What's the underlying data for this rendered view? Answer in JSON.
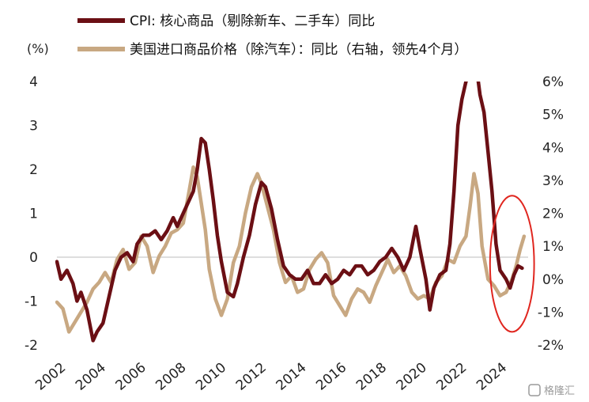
{
  "chart_data": {
    "type": "line",
    "unit_label": "(%)",
    "legend_placement": "top-left",
    "grid": false,
    "x_ticks": [
      "2002",
      "2004",
      "2006",
      "2008",
      "2010",
      "2012",
      "2014",
      "2016",
      "2018",
      "2020",
      "2022",
      "2024"
    ],
    "y_left": {
      "range": [
        -2,
        4
      ],
      "ticks": [
        "-2",
        "-1",
        "0",
        "1",
        "2",
        "3",
        "4"
      ]
    },
    "y_right": {
      "range": [
        -2,
        6
      ],
      "ticks": [
        "-2%",
        "-1%",
        "0%",
        "1%",
        "2%",
        "3%",
        "4%",
        "5%",
        "6%"
      ]
    },
    "series": [
      {
        "name": "CPI: 核心商品（剔除新车、二手车）同比",
        "axis": "left",
        "color": "#6b0f14",
        "points": [
          [
            2002.0,
            -0.1
          ],
          [
            2002.2,
            -0.5
          ],
          [
            2002.5,
            -0.3
          ],
          [
            2002.8,
            -0.6
          ],
          [
            2003.0,
            -1.0
          ],
          [
            2003.2,
            -0.8
          ],
          [
            2003.5,
            -1.2
          ],
          [
            2003.8,
            -1.9
          ],
          [
            2004.0,
            -1.7
          ],
          [
            2004.3,
            -1.5
          ],
          [
            2004.6,
            -0.9
          ],
          [
            2004.9,
            -0.3
          ],
          [
            2005.2,
            0.0
          ],
          [
            2005.5,
            0.1
          ],
          [
            2005.8,
            -0.1
          ],
          [
            2006.0,
            0.3
          ],
          [
            2006.3,
            0.5
          ],
          [
            2006.6,
            0.5
          ],
          [
            2006.9,
            0.6
          ],
          [
            2007.2,
            0.4
          ],
          [
            2007.5,
            0.6
          ],
          [
            2007.8,
            0.9
          ],
          [
            2008.0,
            0.7
          ],
          [
            2008.4,
            1.1
          ],
          [
            2008.8,
            1.5
          ],
          [
            2009.0,
            2.0
          ],
          [
            2009.2,
            2.7
          ],
          [
            2009.4,
            2.6
          ],
          [
            2009.6,
            2.0
          ],
          [
            2009.8,
            1.3
          ],
          [
            2010.0,
            0.5
          ],
          [
            2010.2,
            -0.1
          ],
          [
            2010.5,
            -0.8
          ],
          [
            2010.8,
            -0.9
          ],
          [
            2011.0,
            -0.6
          ],
          [
            2011.3,
            0.0
          ],
          [
            2011.6,
            0.5
          ],
          [
            2011.9,
            1.2
          ],
          [
            2012.2,
            1.7
          ],
          [
            2012.4,
            1.6
          ],
          [
            2012.7,
            1.1
          ],
          [
            2013.0,
            0.4
          ],
          [
            2013.3,
            -0.2
          ],
          [
            2013.6,
            -0.4
          ],
          [
            2013.9,
            -0.5
          ],
          [
            2014.2,
            -0.5
          ],
          [
            2014.5,
            -0.3
          ],
          [
            2014.8,
            -0.6
          ],
          [
            2015.1,
            -0.6
          ],
          [
            2015.4,
            -0.4
          ],
          [
            2015.7,
            -0.6
          ],
          [
            2016.0,
            -0.5
          ],
          [
            2016.3,
            -0.3
          ],
          [
            2016.6,
            -0.4
          ],
          [
            2016.9,
            -0.2
          ],
          [
            2017.2,
            -0.2
          ],
          [
            2017.5,
            -0.4
          ],
          [
            2017.8,
            -0.3
          ],
          [
            2018.1,
            -0.1
          ],
          [
            2018.4,
            0.0
          ],
          [
            2018.7,
            0.2
          ],
          [
            2019.0,
            0.0
          ],
          [
            2019.3,
            -0.3
          ],
          [
            2019.6,
            0.0
          ],
          [
            2019.9,
            0.7
          ],
          [
            2020.1,
            0.2
          ],
          [
            2020.4,
            -0.5
          ],
          [
            2020.6,
            -1.2
          ],
          [
            2020.8,
            -0.7
          ],
          [
            2021.1,
            -0.4
          ],
          [
            2021.4,
            -0.3
          ],
          [
            2021.6,
            0.3
          ],
          [
            2021.8,
            1.5
          ],
          [
            2022.0,
            3.0
          ],
          [
            2022.2,
            3.6
          ],
          [
            2022.4,
            4.0
          ],
          [
            2022.6,
            4.2
          ],
          [
            2022.9,
            4.4
          ],
          [
            2023.1,
            3.7
          ],
          [
            2023.3,
            3.3
          ],
          [
            2023.5,
            2.4
          ],
          [
            2023.7,
            1.5
          ],
          [
            2023.9,
            0.3
          ],
          [
            2024.1,
            -0.3
          ],
          [
            2024.4,
            -0.5
          ],
          [
            2024.6,
            -0.7
          ],
          [
            2024.8,
            -0.4
          ],
          [
            2025.0,
            -0.2
          ],
          [
            2025.2,
            -0.25
          ]
        ]
      },
      {
        "name": "美国进口商品价格（除汽车）：同比（右轴，领先4个月）",
        "axis": "right",
        "color": "#c8a882",
        "points": [
          [
            2002.0,
            -0.7
          ],
          [
            2002.3,
            -0.9
          ],
          [
            2002.6,
            -1.6
          ],
          [
            2002.9,
            -1.3
          ],
          [
            2003.2,
            -1.0
          ],
          [
            2003.5,
            -0.7
          ],
          [
            2003.8,
            -0.3
          ],
          [
            2004.1,
            -0.1
          ],
          [
            2004.4,
            0.2
          ],
          [
            2004.7,
            -0.1
          ],
          [
            2005.0,
            0.6
          ],
          [
            2005.3,
            0.9
          ],
          [
            2005.6,
            0.3
          ],
          [
            2005.9,
            0.5
          ],
          [
            2006.2,
            1.3
          ],
          [
            2006.5,
            1.0
          ],
          [
            2006.8,
            0.2
          ],
          [
            2007.1,
            0.7
          ],
          [
            2007.4,
            1.0
          ],
          [
            2007.7,
            1.4
          ],
          [
            2008.0,
            1.5
          ],
          [
            2008.3,
            1.7
          ],
          [
            2008.6,
            2.7
          ],
          [
            2008.8,
            3.4
          ],
          [
            2009.0,
            3.1
          ],
          [
            2009.2,
            2.3
          ],
          [
            2009.4,
            1.5
          ],
          [
            2009.6,
            0.3
          ],
          [
            2009.9,
            -0.6
          ],
          [
            2010.2,
            -1.1
          ],
          [
            2010.5,
            -0.6
          ],
          [
            2010.8,
            0.5
          ],
          [
            2011.1,
            1.0
          ],
          [
            2011.4,
            2.0
          ],
          [
            2011.7,
            2.8
          ],
          [
            2012.0,
            3.2
          ],
          [
            2012.2,
            2.9
          ],
          [
            2012.5,
            2.2
          ],
          [
            2012.8,
            1.5
          ],
          [
            2013.1,
            0.5
          ],
          [
            2013.4,
            -0.1
          ],
          [
            2013.7,
            0.1
          ],
          [
            2014.0,
            -0.4
          ],
          [
            2014.3,
            -0.3
          ],
          [
            2014.6,
            0.3
          ],
          [
            2014.9,
            0.6
          ],
          [
            2015.2,
            0.8
          ],
          [
            2015.5,
            0.5
          ],
          [
            2015.8,
            -0.5
          ],
          [
            2016.1,
            -0.8
          ],
          [
            2016.4,
            -1.1
          ],
          [
            2016.7,
            -0.6
          ],
          [
            2017.0,
            -0.3
          ],
          [
            2017.3,
            -0.4
          ],
          [
            2017.6,
            -0.7
          ],
          [
            2017.9,
            -0.2
          ],
          [
            2018.2,
            0.2
          ],
          [
            2018.5,
            0.6
          ],
          [
            2018.8,
            0.2
          ],
          [
            2019.1,
            0.4
          ],
          [
            2019.4,
            0.1
          ],
          [
            2019.7,
            -0.4
          ],
          [
            2020.0,
            -0.6
          ],
          [
            2020.3,
            -0.5
          ],
          [
            2020.6,
            -0.6
          ],
          [
            2020.9,
            -0.1
          ],
          [
            2021.2,
            0.1
          ],
          [
            2021.5,
            0.6
          ],
          [
            2021.8,
            0.5
          ],
          [
            2022.1,
            1.0
          ],
          [
            2022.4,
            1.3
          ],
          [
            2022.6,
            2.2
          ],
          [
            2022.8,
            3.2
          ],
          [
            2023.0,
            2.6
          ],
          [
            2023.2,
            1.0
          ],
          [
            2023.5,
            0.0
          ],
          [
            2023.8,
            -0.2
          ],
          [
            2024.1,
            -0.5
          ],
          [
            2024.4,
            -0.4
          ],
          [
            2024.7,
            0.0
          ],
          [
            2024.9,
            0.4
          ],
          [
            2025.1,
            0.9
          ],
          [
            2025.3,
            1.3
          ]
        ]
      }
    ],
    "highlight_ellipse": {
      "x_range": [
        2023.6,
        2025.8
      ],
      "y_left_range": [
        -1.7,
        1.4
      ],
      "color": "#e0261f"
    }
  },
  "watermark": "格隆汇"
}
